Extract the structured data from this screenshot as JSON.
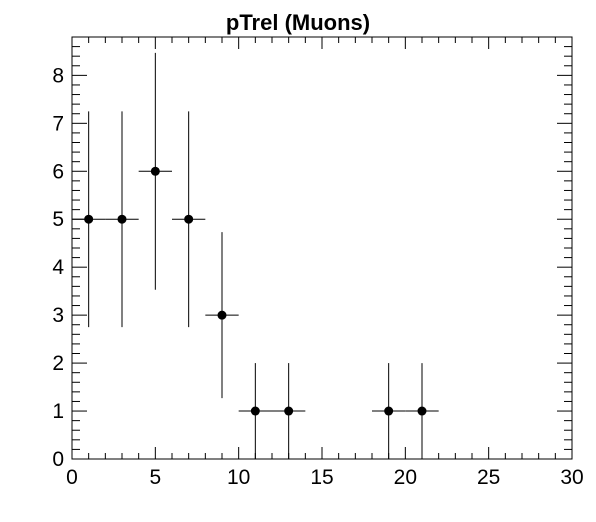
{
  "chart_data": {
    "type": "scatter",
    "title": "pTrel (Muons)",
    "xlabel": "",
    "ylabel": "",
    "xlim": [
      0,
      30
    ],
    "ylim": [
      0,
      8.8
    ],
    "x_ticks": [
      0,
      5,
      10,
      15,
      20,
      25,
      30
    ],
    "y_ticks": [
      0,
      1,
      2,
      3,
      4,
      5,
      6,
      7,
      8
    ],
    "x_minor_step": 1,
    "y_minor_step": 0.2,
    "grid": false,
    "series": [
      {
        "marker_color": "#000000",
        "points": [
          {
            "x": 1,
            "y": 5,
            "xerr": 1,
            "yerr_low": 2.25,
            "yerr_high": 2.25
          },
          {
            "x": 3,
            "y": 5,
            "xerr": 1,
            "yerr_low": 2.25,
            "yerr_high": 2.25
          },
          {
            "x": 5,
            "y": 6,
            "xerr": 1,
            "yerr_low": 2.47,
            "yerr_high": 2.47
          },
          {
            "x": 7,
            "y": 5,
            "xerr": 1,
            "yerr_low": 2.25,
            "yerr_high": 2.25
          },
          {
            "x": 9,
            "y": 3,
            "xerr": 1,
            "yerr_low": 1.73,
            "yerr_high": 1.73
          },
          {
            "x": 11,
            "y": 1,
            "xerr": 1,
            "yerr_low": 1.0,
            "yerr_high": 1.0
          },
          {
            "x": 13,
            "y": 1,
            "xerr": 1,
            "yerr_low": 1.0,
            "yerr_high": 1.0
          },
          {
            "x": 19,
            "y": 1,
            "xerr": 1,
            "yerr_low": 1.0,
            "yerr_high": 1.0
          },
          {
            "x": 21,
            "y": 1,
            "xerr": 1,
            "yerr_low": 1.0,
            "yerr_high": 1.0
          }
        ]
      }
    ]
  }
}
